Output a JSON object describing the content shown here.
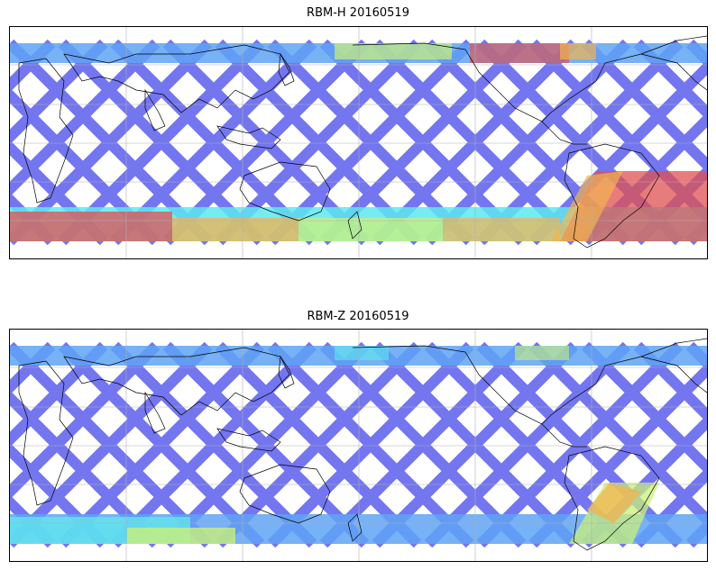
{
  "panels": [
    {
      "title": "RBM-H 20160519",
      "variable": "RBM-H",
      "date": "20160519",
      "colormap": "jet",
      "south_band": "high",
      "south_atlantic_anomaly": "high",
      "north_band": "moderate"
    },
    {
      "title": "RBM-Z 20160519",
      "variable": "RBM-Z",
      "date": "20160519",
      "colormap": "jet",
      "south_band": "moderate",
      "south_atlantic_anomaly": "moderate",
      "north_band": "low"
    }
  ],
  "map": {
    "projection": "equirectangular",
    "central_longitude": 180,
    "coastlines": true,
    "gridlines": true,
    "gridline_color": "#b0b0b0",
    "track_color_low": "#5a5cf0",
    "colors": {
      "low": "#6468ee",
      "mid_low": "#5fa3f5",
      "mid": "#5fe7ee",
      "mid_high": "#c9f07a",
      "high": "#f3b34e",
      "max": "#e05050"
    }
  }
}
